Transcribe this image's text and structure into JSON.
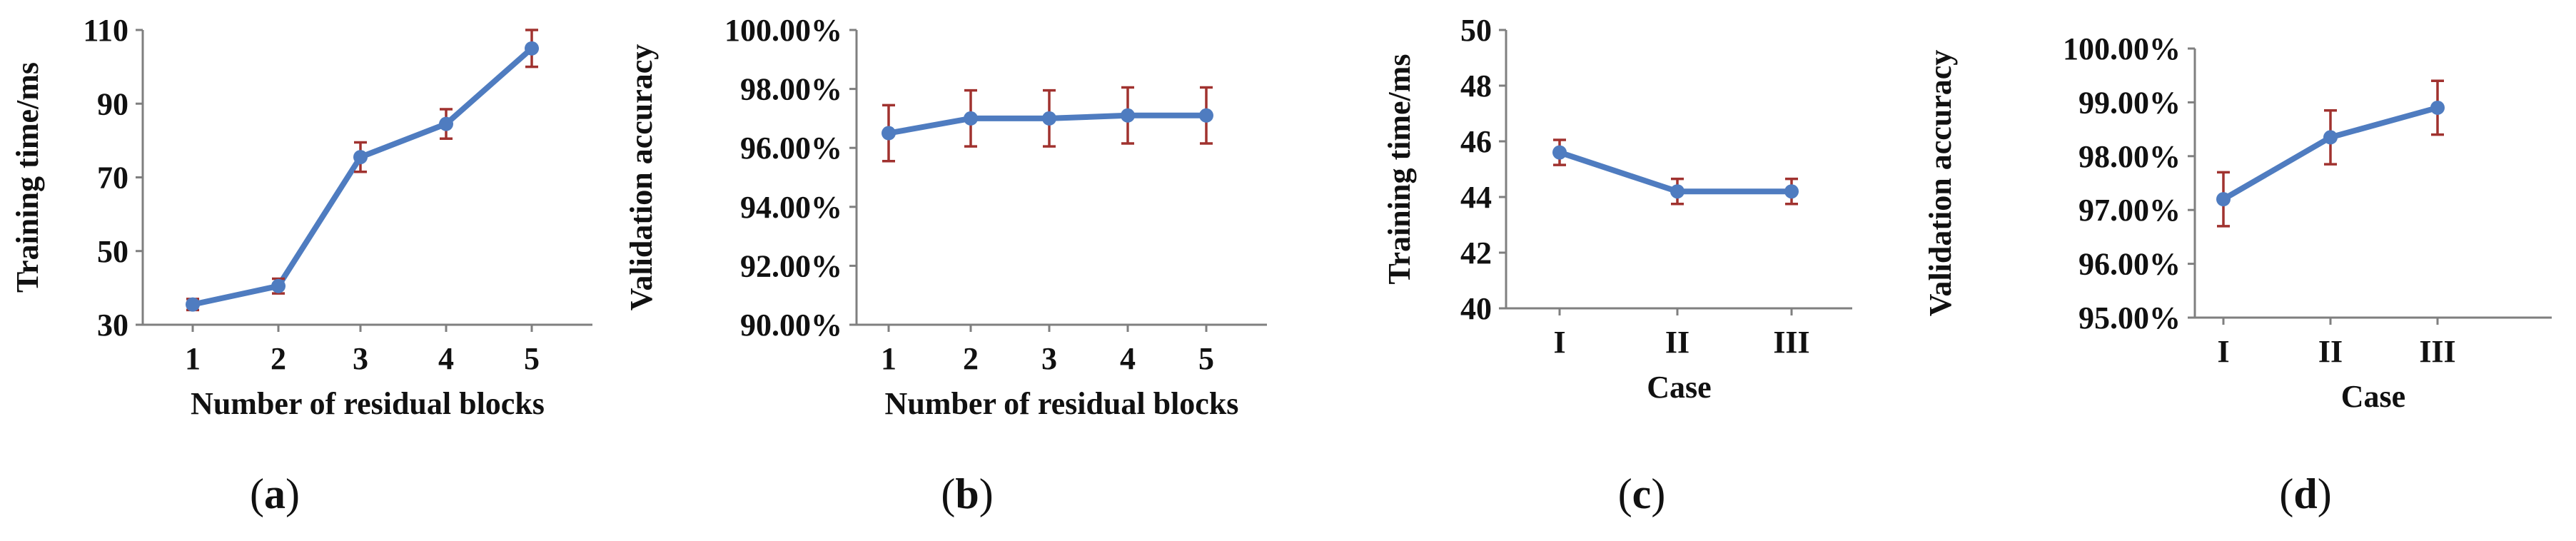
{
  "chart_data": [
    {
      "id": "a",
      "panel_label": "a",
      "type": "line",
      "xlabel": "Number of residual blocks",
      "ylabel": "Training time/ms",
      "categories": [
        "1",
        "2",
        "3",
        "4",
        "5"
      ],
      "values": [
        35.5,
        40.5,
        75.5,
        84.5,
        105
      ],
      "error": [
        1.5,
        2,
        4,
        4,
        5
      ],
      "ylim": [
        30,
        110
      ],
      "yticks": [
        "30",
        "50",
        "70",
        "90",
        "110"
      ],
      "yticks_values": [
        30,
        50,
        70,
        90,
        110
      ],
      "marker_color": "#4f7cc0",
      "error_color": "#a0322f"
    },
    {
      "id": "b",
      "panel_label": "b",
      "type": "line",
      "xlabel": "Number of residual blocks",
      "ylabel": "Validation accuracy",
      "categories": [
        "1",
        "2",
        "3",
        "4",
        "5"
      ],
      "values": [
        96.5,
        97.0,
        97.0,
        97.1,
        97.1
      ],
      "error": [
        0.95,
        0.95,
        0.95,
        0.95,
        0.95
      ],
      "ylim": [
        90,
        100
      ],
      "yticks": [
        "90.00%",
        "92.00%",
        "94.00%",
        "96.00%",
        "98.00%",
        "100.00%"
      ],
      "yticks_values": [
        90,
        92,
        94,
        96,
        98,
        100
      ],
      "marker_color": "#4f7cc0",
      "error_color": "#a0322f"
    },
    {
      "id": "c",
      "panel_label": "c",
      "type": "line",
      "xlabel": "Case",
      "ylabel": "Training time/ms",
      "categories": [
        "I",
        "II",
        "III"
      ],
      "values": [
        45.6,
        44.2,
        44.2
      ],
      "error": [
        0.45,
        0.45,
        0.45
      ],
      "ylim": [
        40,
        50
      ],
      "yticks": [
        "40",
        "42",
        "44",
        "46",
        "48",
        "50"
      ],
      "yticks_values": [
        40,
        42,
        44,
        46,
        48,
        50
      ],
      "marker_color": "#4f7cc0",
      "error_color": "#a0322f"
    },
    {
      "id": "d",
      "panel_label": "d",
      "type": "line",
      "xlabel": "Case",
      "ylabel": "Validation accuracy",
      "categories": [
        "I",
        "II",
        "III"
      ],
      "values": [
        97.2,
        98.35,
        98.9
      ],
      "error": [
        0.5,
        0.5,
        0.5
      ],
      "ylim": [
        95,
        100
      ],
      "yticks": [
        "95.00%",
        "96.00%",
        "97.00%",
        "98.00%",
        "99.00%",
        "100.00%"
      ],
      "yticks_values": [
        95,
        96,
        97,
        98,
        99,
        100
      ],
      "marker_color": "#4f7cc0",
      "error_color": "#a0322f"
    }
  ]
}
